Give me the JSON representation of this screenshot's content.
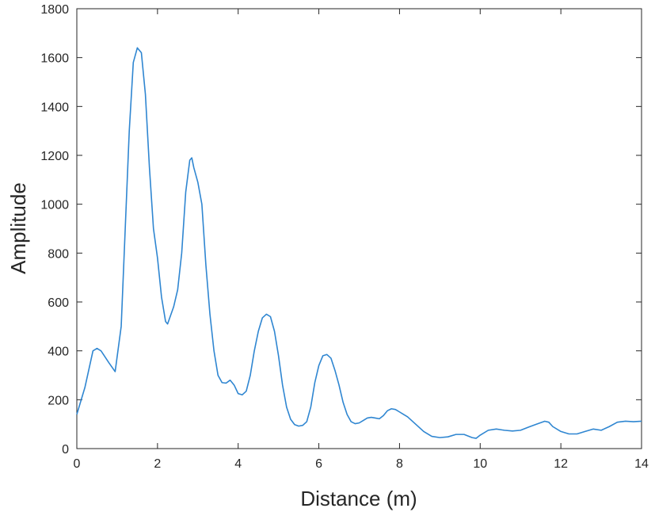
{
  "chart_data": {
    "type": "line",
    "xlabel": "Distance (m)",
    "ylabel": "Amplitude",
    "x": [
      0,
      0.2,
      0.4,
      0.5,
      0.6,
      0.8,
      0.95,
      1.1,
      1.2,
      1.3,
      1.4,
      1.5,
      1.6,
      1.7,
      1.8,
      1.9,
      2.0,
      2.1,
      2.2,
      2.25,
      2.4,
      2.5,
      2.6,
      2.7,
      2.8,
      2.85,
      2.9,
      3.0,
      3.1,
      3.2,
      3.3,
      3.4,
      3.5,
      3.6,
      3.7,
      3.8,
      3.9,
      4.0,
      4.1,
      4.2,
      4.3,
      4.4,
      4.5,
      4.6,
      4.7,
      4.8,
      4.9,
      5.0,
      5.1,
      5.2,
      5.3,
      5.4,
      5.5,
      5.6,
      5.7,
      5.8,
      5.9,
      6.0,
      6.1,
      6.2,
      6.3,
      6.4,
      6.5,
      6.6,
      6.7,
      6.8,
      6.9,
      7.0,
      7.1,
      7.2,
      7.3,
      7.4,
      7.5,
      7.6,
      7.7,
      7.8,
      7.9,
      8.0,
      8.2,
      8.4,
      8.6,
      8.8,
      9.0,
      9.2,
      9.4,
      9.6,
      9.8,
      9.9,
      10.0,
      10.2,
      10.4,
      10.6,
      10.8,
      11.0,
      11.2,
      11.4,
      11.6,
      11.7,
      11.8,
      12.0,
      12.2,
      12.4,
      12.6,
      12.8,
      13.0,
      13.2,
      13.4,
      13.6,
      13.8,
      14.0
    ],
    "series": [
      {
        "name": "Amplitude",
        "color": "#2f86d1",
        "values": [
          140,
          250,
          400,
          410,
          400,
          350,
          315,
          500,
          900,
          1300,
          1580,
          1640,
          1620,
          1450,
          1150,
          900,
          780,
          620,
          520,
          510,
          580,
          650,
          800,
          1050,
          1180,
          1190,
          1150,
          1090,
          1000,
          750,
          550,
          400,
          300,
          270,
          268,
          280,
          260,
          225,
          220,
          235,
          300,
          400,
          480,
          535,
          550,
          540,
          480,
          380,
          260,
          170,
          120,
          98,
          92,
          95,
          110,
          170,
          270,
          340,
          380,
          385,
          370,
          320,
          260,
          190,
          140,
          110,
          102,
          105,
          115,
          125,
          128,
          125,
          122,
          135,
          155,
          163,
          160,
          150,
          130,
          100,
          70,
          50,
          45,
          48,
          58,
          58,
          45,
          42,
          55,
          75,
          80,
          75,
          72,
          75,
          88,
          100,
          112,
          108,
          90,
          70,
          60,
          60,
          70,
          80,
          75,
          90,
          108,
          112,
          110,
          112
        ]
      }
    ],
    "xlim": [
      0,
      14
    ],
    "xticks": [
      0,
      2,
      4,
      6,
      8,
      10,
      12,
      14
    ],
    "ylim": [
      0,
      1800
    ],
    "yticks": [
      0,
      200,
      400,
      600,
      800,
      1000,
      1200,
      1400,
      1600,
      1800
    ],
    "grid": false
  }
}
